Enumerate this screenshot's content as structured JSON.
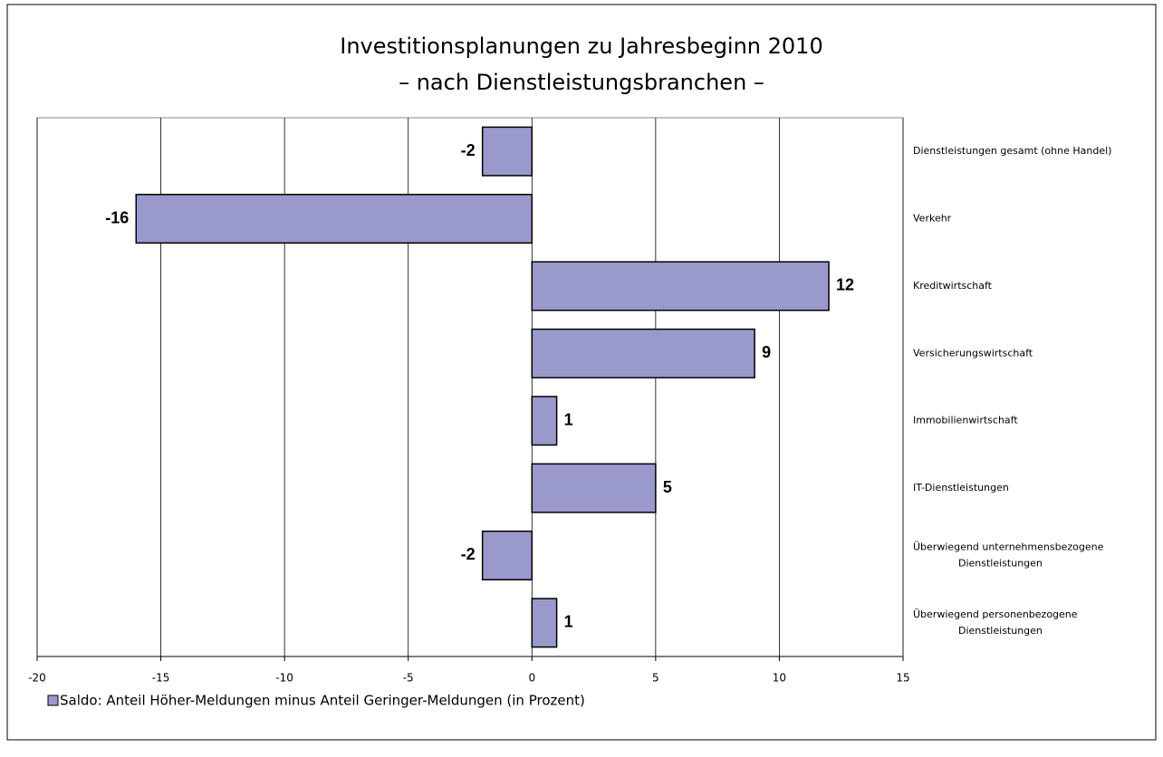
{
  "chart_data": {
    "type": "barh",
    "title": "Investitionsplanungen zu Jahresbeginn 2010",
    "subtitle": "– nach Dienstleistungsbranchen –",
    "categories": [
      "Dienstleistungen gesamt (ohne Handel)",
      "Verkehr",
      "Kreditwirtschaft",
      "Versicherungswirtschaft",
      "Immobilienwirtschaft",
      "IT-Dienstleistungen",
      "Überwiegend unternehmensbezogene Dienstleistungen",
      "Überwiegend personenbezogene Dienstleistungen"
    ],
    "series": [
      {
        "name": "Saldo: Anteil Höher-Meldungen minus Anteil Geringer-Meldungen (in Prozent)",
        "color": "#9999cc",
        "values": [
          -2,
          -16,
          12,
          9,
          1,
          5,
          -2,
          1
        ]
      }
    ],
    "xlim": [
      -20,
      15
    ],
    "xticks": [
      -20,
      -15,
      -10,
      -5,
      0,
      5,
      10,
      15
    ],
    "grid": true
  }
}
